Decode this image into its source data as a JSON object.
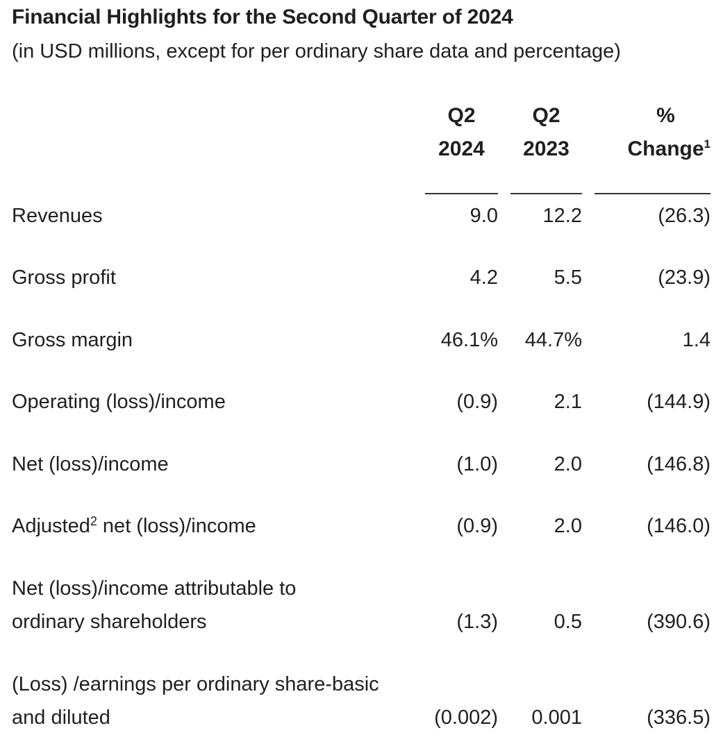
{
  "header": {
    "title": "Financial Highlights for the Second Quarter of 2024",
    "subtitle": "(in USD millions, except for per ordinary share data and percentage)"
  },
  "columns": [
    {
      "line1": "Q2",
      "line2": "2024"
    },
    {
      "line1": "Q2",
      "line2": "2023"
    },
    {
      "line1": "%",
      "line2": "Change",
      "footnote": "1"
    }
  ],
  "rows": [
    {
      "label": "Revenues",
      "q2_2024": "9.0",
      "q2_2023": "12.2",
      "change": "(26.3)"
    },
    {
      "label": "Gross profit",
      "q2_2024": "4.2",
      "q2_2023": "5.5",
      "change": "(23.9)"
    },
    {
      "label": "Gross margin",
      "q2_2024": "46.1%",
      "q2_2023": "44.7%",
      "change": "1.4"
    },
    {
      "label": "Operating (loss)/income",
      "q2_2024": "(0.9)",
      "q2_2023": "2.1",
      "change": "(144.9)"
    },
    {
      "label": "Net (loss)/income",
      "q2_2024": "(1.0)",
      "q2_2023": "2.0",
      "change": "(146.8)"
    },
    {
      "label_before": "Adjusted",
      "label_footnote": "2",
      "label_after": " net (loss)/income",
      "q2_2024": "(0.9)",
      "q2_2023": "2.0",
      "change": "(146.0)"
    },
    {
      "label_line1": "Net (loss)/income attributable to",
      "label_line2": "ordinary shareholders",
      "q2_2024": "(1.3)",
      "q2_2023": "0.5",
      "change": "(390.6)"
    },
    {
      "label_line1": "(Loss) /earnings per ordinary share-basic",
      "label_line2": "and diluted",
      "q2_2024": "(0.002)",
      "q2_2023": "0.001",
      "change": "(336.5)"
    }
  ]
}
